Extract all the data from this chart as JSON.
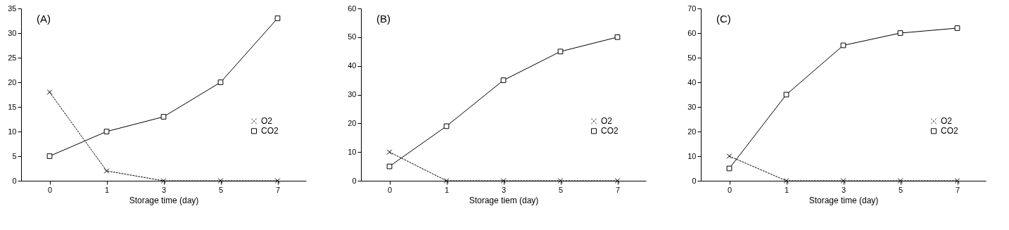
{
  "chart_data": [
    {
      "type": "line",
      "title": "(A)",
      "xlabel": "Storage time (day)",
      "categories": [
        "0",
        "1",
        "3",
        "5",
        "7"
      ],
      "ylim": [
        0,
        35
      ],
      "yticks": [
        0,
        5,
        10,
        15,
        20,
        25,
        30,
        35
      ],
      "grid": false,
      "legend": "right",
      "series": [
        {
          "name": "O2",
          "color": "#000000",
          "marker": "cross",
          "line_style": "dotted",
          "values": [
            18,
            2,
            0,
            0,
            0
          ]
        },
        {
          "name": "CO2",
          "color": "#000000",
          "marker": "square",
          "line_style": "solid",
          "values": [
            5,
            10,
            13,
            20,
            33
          ]
        }
      ]
    },
    {
      "type": "line",
      "title": "(B)",
      "xlabel": "Storage tiem (day)",
      "categories": [
        "0",
        "1",
        "3",
        "5",
        "7"
      ],
      "ylim": [
        0,
        60
      ],
      "yticks": [
        0,
        10,
        20,
        30,
        40,
        50,
        60
      ],
      "grid": false,
      "legend": "right",
      "series": [
        {
          "name": "O2",
          "color": "#000000",
          "marker": "cross",
          "line_style": "dotted",
          "values": [
            10,
            0,
            0,
            0,
            0
          ]
        },
        {
          "name": "CO2",
          "color": "#000000",
          "marker": "square",
          "line_style": "solid",
          "values": [
            5,
            19,
            35,
            45,
            50
          ]
        }
      ]
    },
    {
      "type": "line",
      "title": "(C)",
      "xlabel": "Storage time (day)",
      "categories": [
        "0",
        "1",
        "3",
        "5",
        "7"
      ],
      "ylim": [
        0,
        70
      ],
      "yticks": [
        0,
        10,
        20,
        30,
        40,
        50,
        60,
        70
      ],
      "grid": false,
      "legend": "right",
      "series": [
        {
          "name": "O2",
          "color": "#000000",
          "marker": "cross",
          "line_style": "dotted",
          "values": [
            10,
            0,
            0,
            0,
            0
          ]
        },
        {
          "name": "CO2",
          "color": "#000000",
          "marker": "square",
          "line_style": "solid",
          "values": [
            5,
            35,
            55,
            60,
            62
          ]
        }
      ]
    }
  ]
}
